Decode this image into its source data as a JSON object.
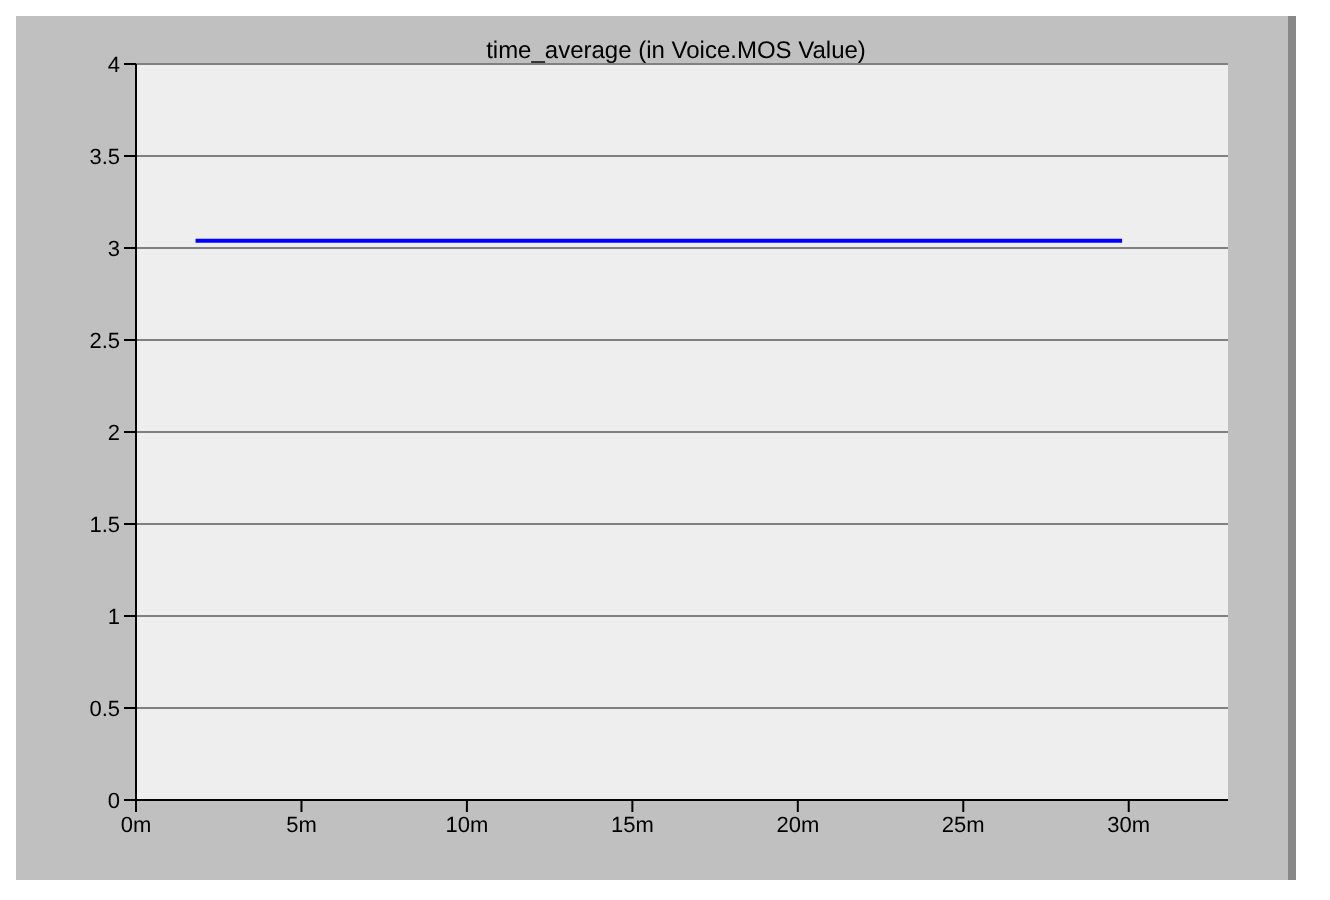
{
  "chart_data": {
    "type": "line",
    "title": "time_average (in Voice.MOS Value)",
    "x": [
      1.8,
      29.8
    ],
    "series": [
      {
        "color": "#0000ff",
        "values": [
          3.04,
          3.04
        ]
      }
    ],
    "xlim": [
      0,
      33
    ],
    "xticks": [
      {
        "value": 0,
        "label": "0m"
      },
      {
        "value": 5,
        "label": "5m"
      },
      {
        "value": 10,
        "label": "10m"
      },
      {
        "value": 15,
        "label": "15m"
      },
      {
        "value": 20,
        "label": "20m"
      },
      {
        "value": 25,
        "label": "25m"
      },
      {
        "value": 30,
        "label": "30m"
      }
    ],
    "ylim": [
      0,
      4
    ],
    "yticks": [
      0,
      0.5,
      1,
      1.5,
      2,
      2.5,
      3,
      3.5,
      4
    ],
    "grid": "y",
    "legend": false,
    "marker": "none",
    "line_style": "solid"
  }
}
